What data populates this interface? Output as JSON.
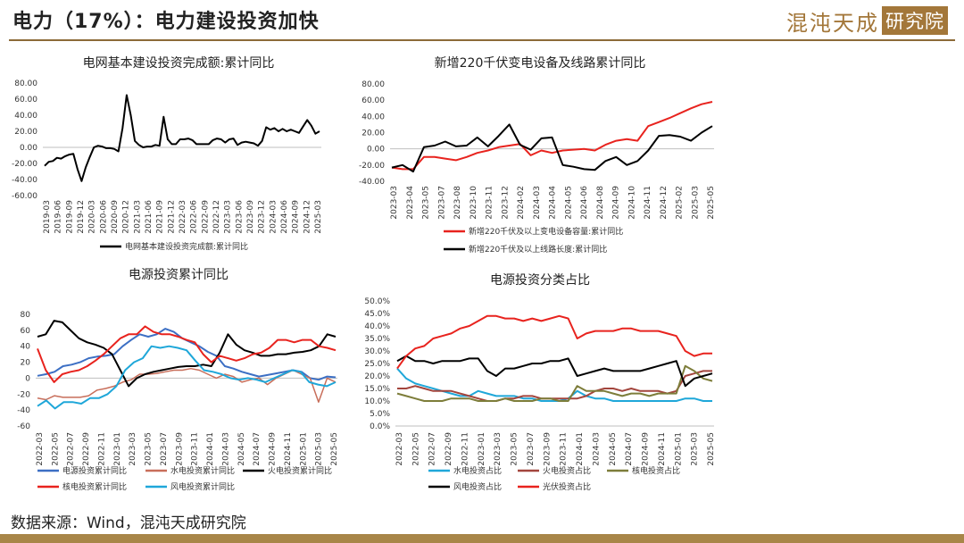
{
  "header": {
    "title": "电力（17%）：电力建设投资加快",
    "logo_main": "混沌天成",
    "logo_box": "研究院"
  },
  "footer": {
    "source": "数据来源：Wind，混沌天成研究院"
  },
  "colors": {
    "accent": "#a3773a",
    "black": "#000000",
    "red": "#e8231e",
    "darkred": "#a3453d",
    "blue": "#3c6fc4",
    "lightblue": "#1fa7d9",
    "olive": "#7d7d3a",
    "salmon": "#c86e5a"
  },
  "chart_data": [
    {
      "id": "c1",
      "type": "line",
      "title": "电网基本建设投资完成额:累计同比",
      "y_ticks": [
        "80.00",
        "60.00",
        "40.00",
        "20.00",
        "0.00",
        "-20.00",
        "-40.00",
        "-60.00"
      ],
      "ylim": [
        -60,
        80
      ],
      "x_ticks": [
        "2019-03",
        "2019-06",
        "2019-09",
        "2019-12",
        "2020-03",
        "2020-06",
        "2020-09",
        "2020-12",
        "2021-03",
        "2021-06",
        "2021-09",
        "2021-12",
        "2022-03",
        "2022-06",
        "2022-09",
        "2022-12",
        "2023-03",
        "2023-06",
        "2023-09",
        "2023-12",
        "2024-03",
        "2024-06",
        "2024-09",
        "2024-12",
        "2025-03"
      ],
      "grid": false,
      "legend": "bottom",
      "series": [
        {
          "name": "电网基本建设投资完成额:累计同比",
          "color": "#000000",
          "width": 2,
          "values": [
            -23,
            -18,
            -17,
            -13,
            -14,
            -11,
            -9,
            -8,
            -27,
            -42,
            -25,
            -12,
            0,
            2,
            1,
            -1,
            -1,
            -2,
            -5,
            24,
            65,
            40,
            8,
            3,
            0,
            1,
            1,
            3,
            2,
            38,
            10,
            4,
            4,
            10,
            10,
            11,
            9,
            4,
            4,
            4,
            4,
            9,
            11,
            10,
            6,
            10,
            11,
            3,
            6,
            7,
            6,
            5,
            2,
            8,
            25,
            22,
            24,
            20,
            23,
            20,
            22,
            20,
            18,
            26,
            34,
            27,
            17,
            20
          ]
        }
      ]
    },
    {
      "id": "c2",
      "type": "line",
      "title": "新增220千伏变电设备及线路累计同比",
      "y_ticks": [
        "80.00",
        "60.00",
        "40.00",
        "20.00",
        "0.00",
        "-20.00",
        "-40.00"
      ],
      "ylim": [
        -40,
        80
      ],
      "x_ticks": [
        "2023-03",
        "2023-04",
        "2023-05",
        "2023-07",
        "2023-08",
        "2023-10",
        "2023-11",
        "2023-12",
        "2024-02",
        "2024-03",
        "2024-04",
        "2024-05",
        "2024-06",
        "2024-08",
        "2024-09",
        "2024-10",
        "2024-11",
        "2024-12",
        "2025-02",
        "2025-03",
        "2025-05"
      ],
      "grid": false,
      "legend": "bottom",
      "series": [
        {
          "name": "新增220千伏及以上变电设备容量:累计同比",
          "color": "#e8231e",
          "width": 2,
          "values": [
            -23,
            -25,
            -25,
            -10,
            -10,
            -12,
            -14,
            -10,
            -5,
            -2,
            2,
            4,
            6,
            -8,
            -2,
            -5,
            -2,
            -1,
            0,
            -2,
            5,
            10,
            12,
            10,
            28,
            33,
            38,
            44,
            50,
            55,
            58
          ]
        },
        {
          "name": "新增220千伏及以上线路长度:累计同比",
          "color": "#000000",
          "width": 2,
          "values": [
            -23,
            -20,
            -28,
            2,
            4,
            9,
            3,
            4,
            14,
            3,
            16,
            30,
            5,
            -1,
            13,
            14,
            -20,
            -22,
            -25,
            -26,
            -15,
            -10,
            -20,
            -15,
            -2,
            16,
            17,
            15,
            10,
            20,
            28
          ]
        }
      ]
    },
    {
      "id": "c3",
      "type": "line",
      "title": "电源投资累计同比",
      "y_ticks": [
        "80",
        "60",
        "40",
        "20",
        "0",
        "-20",
        "-40",
        "-60"
      ],
      "ylim": [
        -60,
        80
      ],
      "x_ticks": [
        "2022-03",
        "2022-05",
        "2022-07",
        "2022-09",
        "2022-11",
        "2023-01",
        "2023-03",
        "2023-05",
        "2023-07",
        "2023-09",
        "2023-11",
        "2024-01",
        "2024-03",
        "2024-05",
        "2024-07",
        "2024-09",
        "2024-11",
        "2025-01",
        "2025-03",
        "2025-05"
      ],
      "grid": false,
      "legend": "bottom",
      "series": [
        {
          "name": "电源投资累计同比",
          "color": "#3c6fc4",
          "width": 2,
          "values": [
            3,
            5,
            8,
            15,
            17,
            20,
            25,
            27,
            28,
            30,
            40,
            48,
            55,
            52,
            55,
            62,
            58,
            50,
            45,
            40,
            33,
            28,
            15,
            12,
            8,
            5,
            2,
            4,
            6,
            8,
            10,
            8,
            0,
            -2,
            2,
            1
          ]
        },
        {
          "name": "水电投资累计同比",
          "color": "#c86e5a",
          "width": 1.5,
          "values": [
            -25,
            -27,
            -22,
            -24,
            -24,
            -24,
            -22,
            -15,
            -13,
            -10,
            -5,
            -2,
            5,
            5,
            6,
            8,
            10,
            10,
            12,
            10,
            5,
            0,
            5,
            2,
            -5,
            -2,
            0,
            -8,
            0,
            5,
            10,
            5,
            0,
            -30,
            0,
            -5
          ]
        },
        {
          "name": "火电投资累计同比",
          "color": "#000000",
          "width": 2,
          "values": [
            52,
            55,
            72,
            70,
            60,
            50,
            45,
            42,
            38,
            30,
            10,
            -10,
            0,
            5,
            8,
            10,
            12,
            14,
            15,
            15,
            17,
            15,
            32,
            55,
            42,
            35,
            32,
            28,
            28,
            30,
            30,
            32,
            33,
            35,
            40,
            55,
            52
          ]
        },
        {
          "name": "核电投资累计同比",
          "color": "#e8231e",
          "width": 2,
          "values": [
            37,
            10,
            -5,
            5,
            8,
            10,
            15,
            22,
            30,
            40,
            50,
            55,
            55,
            65,
            58,
            55,
            55,
            52,
            48,
            45,
            30,
            20,
            28,
            25,
            22,
            25,
            30,
            32,
            38,
            48,
            48,
            45,
            48,
            48,
            40,
            38,
            35
          ]
        },
        {
          "name": "风电投资累计同比",
          "color": "#1fa7d9",
          "width": 2,
          "values": [
            -35,
            -28,
            -38,
            -30,
            -30,
            -32,
            -25,
            -25,
            -20,
            -10,
            10,
            20,
            25,
            40,
            38,
            40,
            38,
            35,
            22,
            10,
            8,
            5,
            0,
            -2,
            0,
            -2,
            -5,
            0,
            5,
            10,
            8,
            -5,
            -8,
            -10,
            -5
          ]
        }
      ]
    },
    {
      "id": "c4",
      "type": "line",
      "title": "电源投资分类占比",
      "y_ticks": [
        "50.0%",
        "45.0%",
        "40.0%",
        "35.0%",
        "30.0%",
        "25.0%",
        "20.0%",
        "15.0%",
        "10.0%",
        "5.0%",
        "0.0%"
      ],
      "ylim": [
        0,
        50
      ],
      "x_ticks": [
        "2022-03",
        "2022-05",
        "2022-07",
        "2022-09",
        "2022-11",
        "2023-01",
        "2023-03",
        "2023-05",
        "2023-07",
        "2023-09",
        "2023-11",
        "2024-01",
        "2024-03",
        "2024-05",
        "2024-07",
        "2024-09",
        "2024-11",
        "2025-01",
        "2025-03",
        "2025-05"
      ],
      "grid": false,
      "legend": "bottom",
      "series": [
        {
          "name": "水电投资占比",
          "color": "#1fa7d9",
          "width": 2,
          "values": [
            23,
            19,
            17,
            16,
            15,
            14,
            13,
            12,
            12,
            14,
            13,
            12,
            12,
            12,
            11,
            11,
            10,
            10,
            10,
            11,
            14,
            12,
            11,
            11,
            10,
            10,
            10,
            10,
            10,
            10,
            10,
            10,
            11,
            11,
            10,
            10
          ]
        },
        {
          "name": "火电投资占比",
          "color": "#a3453d",
          "width": 2,
          "values": [
            15,
            15,
            16,
            15,
            14,
            14,
            14,
            13,
            12,
            11,
            10,
            10,
            11,
            11,
            12,
            12,
            11,
            11,
            11,
            11,
            11,
            12,
            14,
            15,
            15,
            14,
            15,
            14,
            14,
            14,
            13,
            14,
            20,
            21,
            22,
            22
          ]
        },
        {
          "name": "核电投资占比",
          "color": "#7d7d3a",
          "width": 2,
          "values": [
            13,
            12,
            11,
            10,
            10,
            10,
            11,
            11,
            11,
            10,
            10,
            10,
            11,
            10,
            10,
            10,
            11,
            11,
            10,
            10,
            16,
            14,
            14,
            14,
            13,
            12,
            13,
            13,
            12,
            13,
            13,
            13,
            24,
            22,
            19,
            18
          ]
        },
        {
          "name": "风电投资占比",
          "color": "#000000",
          "width": 2,
          "values": [
            26,
            28,
            26,
            26,
            25,
            26,
            26,
            26,
            27,
            27,
            22,
            20,
            23,
            23,
            24,
            25,
            25,
            26,
            26,
            27,
            20,
            21,
            22,
            23,
            22,
            22,
            22,
            22,
            23,
            24,
            25,
            26,
            16,
            19,
            20,
            21
          ]
        },
        {
          "name": "光伏投资占比",
          "color": "#e8231e",
          "width": 2,
          "values": [
            23,
            28,
            31,
            32,
            35,
            36,
            37,
            39,
            40,
            42,
            44,
            44,
            43,
            43,
            42,
            43,
            42,
            43,
            44,
            43,
            35,
            37,
            38,
            38,
            38,
            39,
            39,
            38,
            38,
            38,
            37,
            36,
            30,
            28,
            29,
            29
          ]
        }
      ]
    }
  ]
}
